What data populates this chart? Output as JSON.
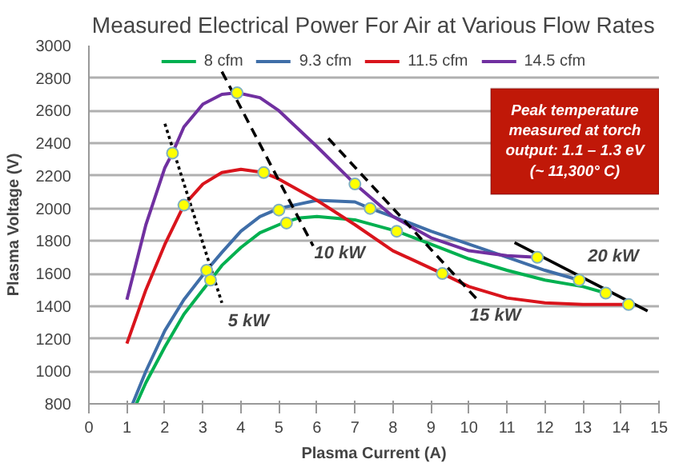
{
  "chart_data": {
    "type": "line",
    "title": "Measured Electrical Power For Air at Various Flow Rates",
    "xlabel": "Plasma Current (A)",
    "ylabel": "Plasma Voltage (V)",
    "xlim": [
      0,
      15
    ],
    "xticks": [
      0,
      1,
      2,
      3,
      4,
      5,
      6,
      7,
      8,
      9,
      10,
      11,
      12,
      13,
      14,
      15
    ],
    "ylim": [
      800,
      3000
    ],
    "yticks": [
      800,
      1000,
      1200,
      1400,
      1600,
      1800,
      2000,
      2200,
      2400,
      2600,
      2800,
      3000
    ],
    "grid": "y",
    "legend": "top",
    "marker": "none",
    "series": [
      {
        "name": "8 cfm",
        "color": "#00b050",
        "x": [
          1.25,
          1.5,
          2,
          2.5,
          3.2,
          3.5,
          4,
          4.5,
          5.1,
          5.5,
          6,
          7,
          8.1,
          9,
          10,
          11,
          12,
          13,
          13.6
        ],
        "values": [
          800,
          930,
          1150,
          1350,
          1560,
          1650,
          1760,
          1850,
          1910,
          1940,
          1950,
          1930,
          1860,
          1780,
          1690,
          1620,
          1560,
          1520,
          1480
        ]
      },
      {
        "name": "9.3 cfm",
        "color": "#3f6ea8",
        "x": [
          1.15,
          1.5,
          2,
          2.5,
          3.1,
          3.5,
          4,
          4.5,
          5,
          6,
          7,
          7.4,
          8,
          9,
          10,
          11,
          12,
          12.9
        ],
        "values": [
          800,
          1000,
          1250,
          1440,
          1620,
          1730,
          1860,
          1950,
          2000,
          2050,
          2040,
          2000,
          1950,
          1860,
          1780,
          1700,
          1620,
          1560
        ]
      },
      {
        "name": "11.5 cfm",
        "color": "#d9141c",
        "x": [
          1,
          1.5,
          2,
          2.5,
          3,
          3.5,
          4,
          4.6,
          5,
          6,
          7,
          8,
          9.3,
          10,
          11,
          12,
          13,
          14.2
        ],
        "values": [
          1170,
          1500,
          1780,
          2020,
          2150,
          2220,
          2240,
          2220,
          2180,
          2050,
          1900,
          1740,
          1600,
          1520,
          1450,
          1420,
          1410,
          1410
        ]
      },
      {
        "name": "14.5 cfm",
        "color": "#7030a0",
        "x": [
          1,
          1.5,
          2,
          2.2,
          2.5,
          3,
          3.5,
          3.9,
          4.5,
          5,
          6,
          7,
          8,
          9,
          10,
          11,
          11.8
        ],
        "values": [
          1440,
          1900,
          2250,
          2340,
          2500,
          2640,
          2700,
          2710,
          2680,
          2600,
          2380,
          2150,
          1950,
          1820,
          1740,
          1710,
          1700
        ]
      },
      {
        "color": "#000000",
        "line_style": "dotted",
        "x": [
          2,
          3.5
        ],
        "values": [
          2520,
          1420
        ]
      },
      {
        "color": "#000000",
        "line_style": "dashed",
        "x": [
          3.5,
          5.9
        ],
        "values": [
          2840,
          1770
        ]
      },
      {
        "color": "#000000",
        "line_style": "dashed",
        "x": [
          6.3,
          10.3
        ],
        "values": [
          2430,
          1420
        ]
      },
      {
        "color": "#000000",
        "line_style": "solid",
        "x": [
          11.2,
          14.7
        ],
        "values": [
          1790,
          1370
        ]
      },
      {
        "type": "scatter",
        "marker": "circle",
        "color": "#ffff00",
        "x": [
          2.2,
          2.5,
          3.1,
          3.2,
          3.9,
          4.6,
          5,
          5.2,
          7,
          7.4,
          8.1,
          9.3,
          11.8,
          12.9,
          13.6,
          14.2
        ],
        "values": [
          2340,
          2020,
          1620,
          1560,
          2710,
          2220,
          1990,
          1910,
          2150,
          2000,
          1860,
          1600,
          1700,
          1560,
          1480,
          1410
        ]
      }
    ],
    "annotations": [
      "Peak temperature\nmeasured at torch\noutput: 1.1 – 1.3 eV\n(~ 11,300° C)",
      "5 kW",
      "10 kW",
      "15 kW",
      "20 kW"
    ]
  }
}
